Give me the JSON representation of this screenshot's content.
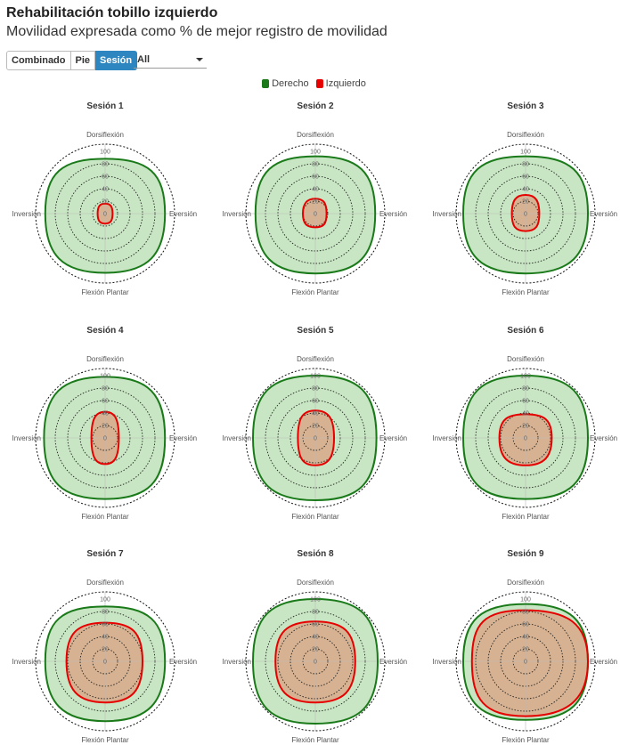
{
  "header": {
    "title": "Rehabilitación tobillo izquierdo",
    "subtitle": "Movilidad expresada como % de mejor registro de movilidad"
  },
  "controls": {
    "tabs": [
      {
        "label": "Combinado",
        "active": false
      },
      {
        "label": "Pie",
        "active": false
      },
      {
        "label": "Sesión",
        "active": true
      }
    ],
    "select_value": "All"
  },
  "legend": [
    {
      "label": "Derecho",
      "color": "#1a7a1a"
    },
    {
      "label": "Izquierdo",
      "color": "#e60000"
    }
  ],
  "colors": {
    "derecho_line": "#1a7a1a",
    "derecho_fill": "#c8e6c3",
    "izquierdo_line": "#e60000",
    "izquierdo_fill": "#d8a88a"
  },
  "chart_data": {
    "type": "radar",
    "axes": [
      "Dorsiflexión",
      "Eversión",
      "Flexión Plantar",
      "Inversión"
    ],
    "radial_ticks": [
      "100",
      "80",
      "60",
      "40",
      "20",
      "0"
    ],
    "rlim": [
      0,
      100
    ],
    "sessions": [
      {
        "title": "Sesión 1",
        "series": [
          {
            "name": "Derecho",
            "values": [
              88,
              96,
              95,
              96
            ]
          },
          {
            "name": "Izquierdo",
            "values": [
              16,
              12,
              16,
              12
            ]
          }
        ]
      },
      {
        "title": "Sesión 2",
        "series": [
          {
            "name": "Derecho",
            "values": [
              92,
              96,
              96,
              96
            ]
          },
          {
            "name": "Izquierdo",
            "values": [
              24,
              18,
              22,
              20
            ]
          }
        ]
      },
      {
        "title": "Sesión 3",
        "series": [
          {
            "name": "Derecho",
            "values": [
              92,
              100,
              96,
              100
            ]
          },
          {
            "name": "Izquierdo",
            "values": [
              30,
              22,
              28,
              22
            ]
          }
        ]
      },
      {
        "title": "Sesión 4",
        "series": [
          {
            "name": "Derecho",
            "values": [
              98,
              96,
              98,
              98
            ]
          },
          {
            "name": "Izquierdo",
            "values": [
              42,
              22,
              42,
              22
            ]
          }
        ]
      },
      {
        "title": "Sesión 5",
        "series": [
          {
            "name": "Derecho",
            "values": [
              100,
              98,
              100,
              100
            ]
          },
          {
            "name": "Izquierdo",
            "values": [
              44,
              30,
              44,
              28
            ]
          }
        ]
      },
      {
        "title": "Sesión 6",
        "series": [
          {
            "name": "Derecho",
            "values": [
              100,
              100,
              98,
              100
            ]
          },
          {
            "name": "Izquierdo",
            "values": [
              38,
              42,
              44,
              42
            ]
          }
        ]
      },
      {
        "title": "Sesión 7",
        "series": [
          {
            "name": "Derecho",
            "values": [
              88,
              96,
              96,
              96
            ]
          },
          {
            "name": "Izquierdo",
            "values": [
              62,
              60,
              66,
              62
            ]
          }
        ]
      },
      {
        "title": "Sesión 8",
        "series": [
          {
            "name": "Derecho",
            "values": [
              100,
              100,
              100,
              100
            ]
          },
          {
            "name": "Izquierdo",
            "values": [
              64,
              64,
              66,
              64
            ]
          }
        ]
      },
      {
        "title": "Sesión 9",
        "series": [
          {
            "name": "Derecho",
            "values": [
              92,
              100,
              94,
              100
            ]
          },
          {
            "name": "Izquierdo",
            "values": [
              82,
              100,
              88,
              86
            ]
          }
        ]
      }
    ],
    "grid": true,
    "legend_position": "top-center"
  }
}
